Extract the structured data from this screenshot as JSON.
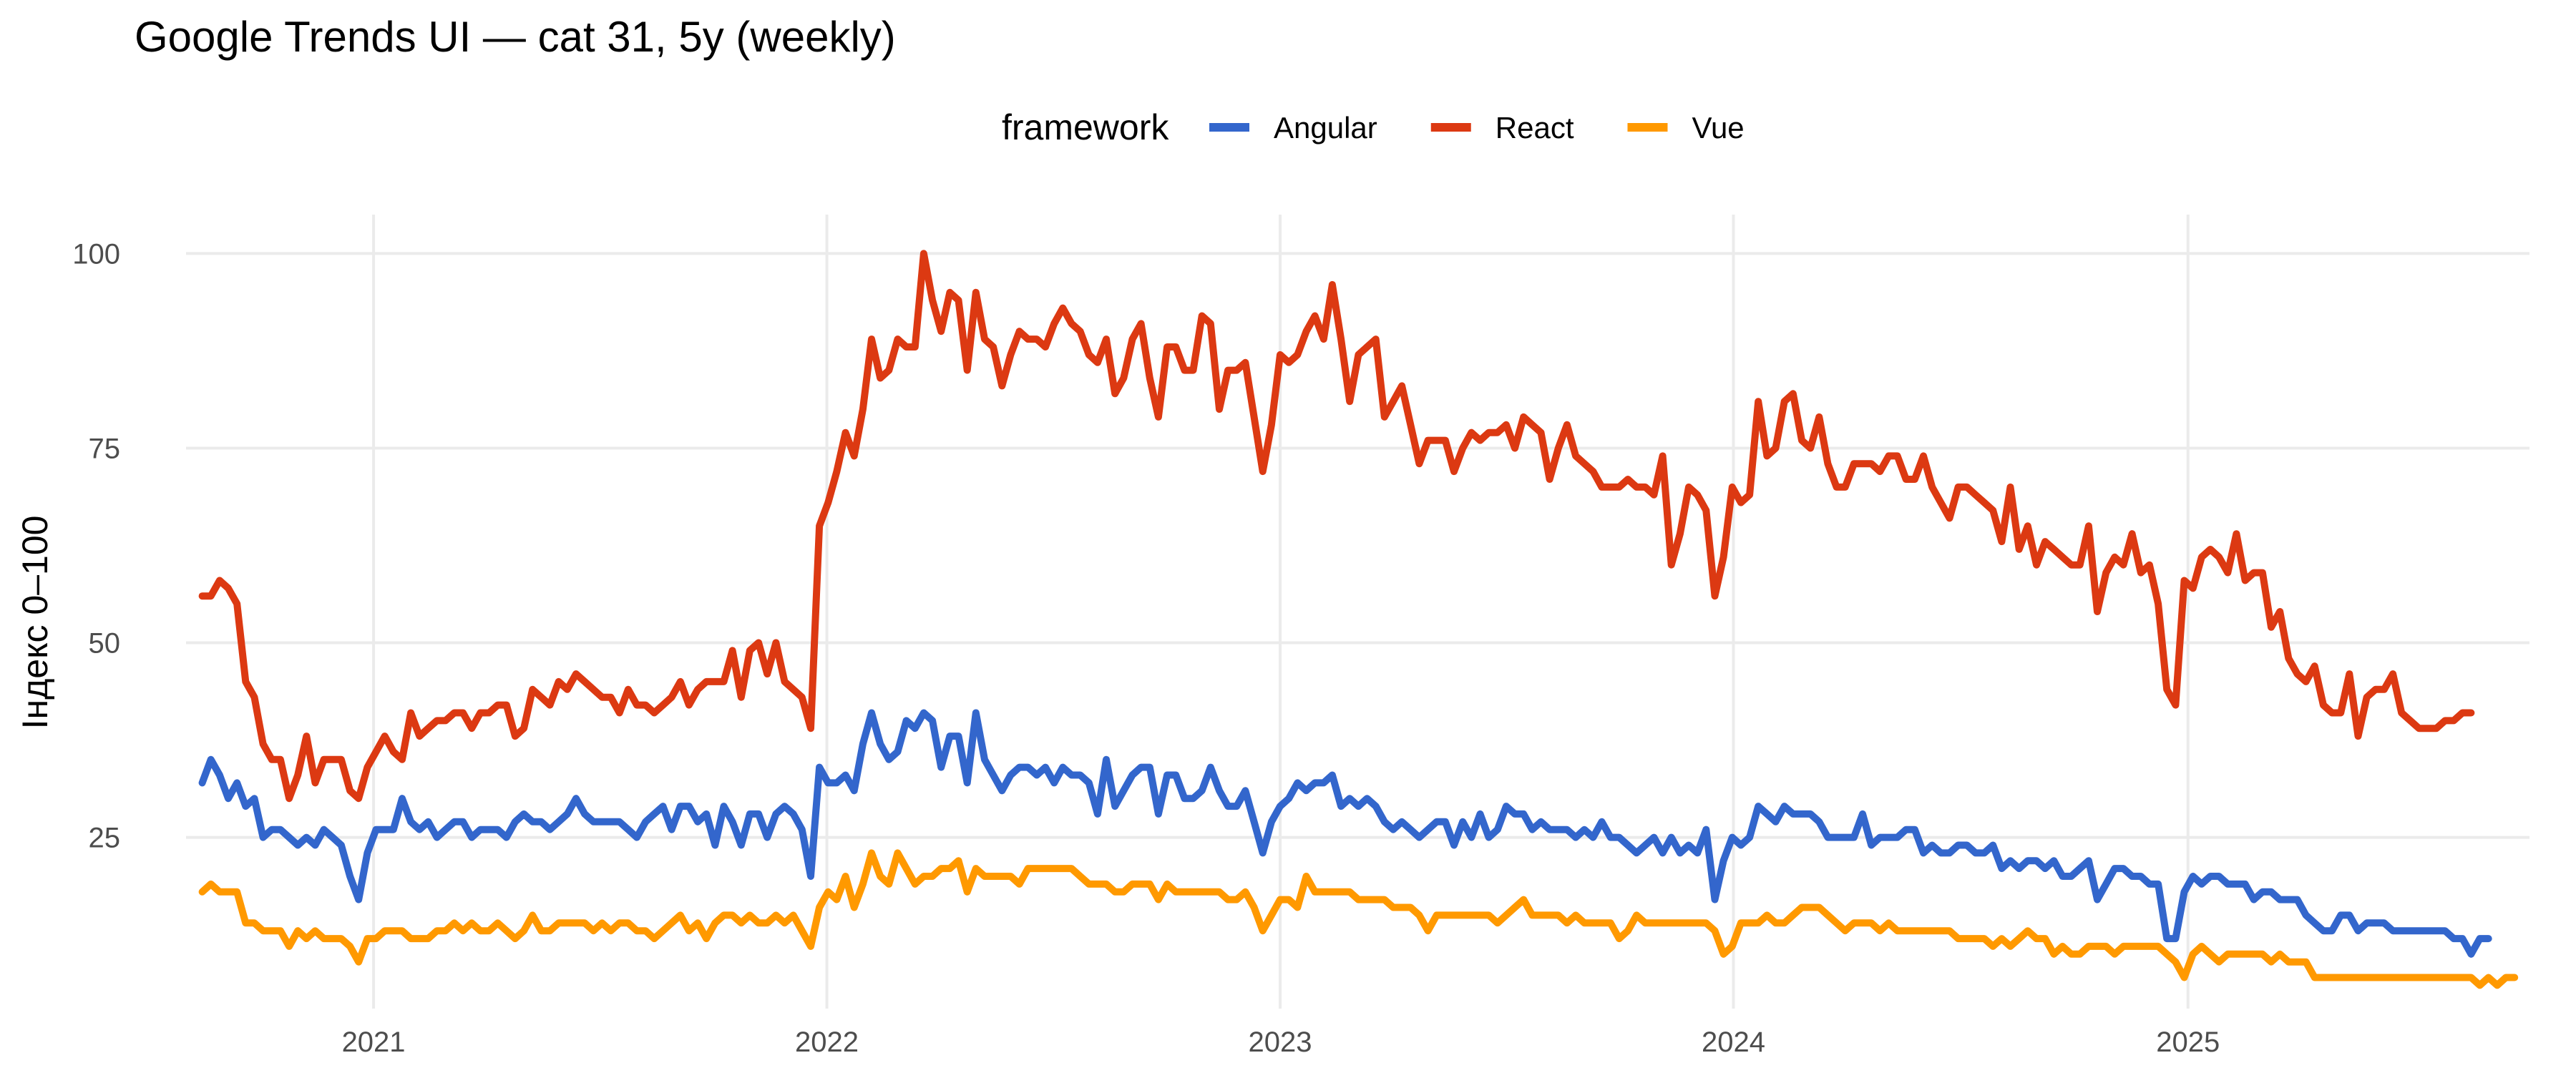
{
  "chart_data": {
    "type": "line",
    "title": "Google Trends UI — cat 31, 5y (weekly)",
    "subtitle": "",
    "xlabel": "",
    "ylabel": "Індекс 0–100",
    "legend": {
      "title": "framework",
      "position": "top"
    },
    "grid": true,
    "xlim": [
      "2020-08-03",
      "2025-10-03"
    ],
    "ylim": [
      3,
      105
    ],
    "x_ticks": [
      {
        "value": "2021-01-01",
        "label": "2021"
      },
      {
        "value": "2022-01-01",
        "label": "2022"
      },
      {
        "value": "2023-01-01",
        "label": "2023"
      },
      {
        "value": "2024-01-01",
        "label": "2024"
      },
      {
        "value": "2025-01-01",
        "label": "2025"
      }
    ],
    "y_ticks": [
      {
        "value": 25,
        "label": "25"
      },
      {
        "value": 50,
        "label": "50"
      },
      {
        "value": 75,
        "label": "75"
      },
      {
        "value": 100,
        "label": "100"
      }
    ],
    "x_start": "2020-08-16",
    "x_interval_days": 7,
    "series": [
      {
        "name": "Angular",
        "color": "#3366CC",
        "values": [
          32,
          35,
          33,
          30,
          32,
          29,
          30,
          25,
          26,
          26,
          25,
          24,
          25,
          24,
          26,
          25,
          24,
          20,
          17,
          23,
          26,
          26,
          26,
          30,
          27,
          26,
          27,
          25,
          26,
          27,
          27,
          25,
          26,
          26,
          26,
          25,
          27,
          28,
          27,
          27,
          26,
          27,
          28,
          30,
          28,
          27,
          27,
          27,
          27,
          26,
          25,
          27,
          28,
          29,
          26,
          29,
          29,
          27,
          28,
          24,
          29,
          27,
          24,
          28,
          28,
          25,
          28,
          29,
          28,
          26,
          20,
          34,
          32,
          32,
          33,
          31,
          37,
          41,
          37,
          35,
          36,
          40,
          39,
          41,
          40,
          34,
          38,
          38,
          32,
          41,
          35,
          33,
          31,
          33,
          34,
          34,
          33,
          34,
          32,
          34,
          33,
          33,
          32,
          28,
          35,
          29,
          31,
          33,
          34,
          34,
          28,
          33,
          33,
          30,
          30,
          31,
          34,
          31,
          29,
          29,
          31,
          27,
          23,
          27,
          29,
          30,
          32,
          31,
          32,
          32,
          33,
          29,
          30,
          29,
          30,
          29,
          27,
          26,
          27,
          26,
          25,
          26,
          27,
          27,
          24,
          27,
          25,
          28,
          25,
          26,
          29,
          28,
          28,
          26,
          27,
          26,
          26,
          26,
          25,
          26,
          25,
          27,
          25,
          25,
          24,
          23,
          24,
          25,
          23,
          25,
          23,
          24,
          23,
          26,
          17,
          22,
          25,
          24,
          25,
          29,
          28,
          27,
          29,
          28,
          28,
          28,
          27,
          25,
          25,
          25,
          25,
          28,
          24,
          25,
          25,
          25,
          26,
          26,
          23,
          24,
          23,
          23,
          24,
          24,
          23,
          23,
          24,
          21,
          22,
          21,
          22,
          22,
          21,
          22,
          20,
          20,
          21,
          22,
          17,
          19,
          21,
          21,
          20,
          20,
          19,
          19,
          12,
          12,
          18,
          20,
          19,
          20,
          20,
          19,
          19,
          19,
          17,
          18,
          18,
          17,
          17,
          17,
          15,
          14,
          13,
          13,
          15,
          15,
          13,
          14,
          14,
          14,
          13,
          13,
          13,
          13,
          13,
          13,
          13,
          12,
          12,
          10,
          12,
          12
        ]
      },
      {
        "name": "React",
        "color": "#DC3912",
        "values": [
          56,
          56,
          58,
          57,
          55,
          45,
          43,
          37,
          35,
          35,
          30,
          33,
          38,
          32,
          35,
          35,
          35,
          31,
          30,
          34,
          36,
          38,
          36,
          35,
          41,
          38,
          39,
          40,
          40,
          41,
          41,
          39,
          41,
          41,
          42,
          42,
          38,
          39,
          44,
          43,
          42,
          45,
          44,
          46,
          45,
          44,
          43,
          43,
          41,
          44,
          42,
          42,
          41,
          42,
          43,
          45,
          42,
          44,
          45,
          45,
          45,
          49,
          43,
          49,
          50,
          46,
          50,
          45,
          44,
          43,
          39,
          65,
          68,
          72,
          77,
          74,
          80,
          89,
          84,
          85,
          89,
          88,
          88,
          100,
          94,
          90,
          95,
          94,
          85,
          95,
          89,
          88,
          83,
          87,
          90,
          89,
          89,
          88,
          91,
          93,
          91,
          90,
          87,
          86,
          89,
          82,
          84,
          89,
          91,
          84,
          79,
          88,
          88,
          85,
          85,
          92,
          91,
          80,
          85,
          85,
          86,
          79,
          72,
          78,
          87,
          86,
          87,
          90,
          92,
          89,
          96,
          89,
          81,
          87,
          88,
          89,
          79,
          81,
          83,
          78,
          73,
          76,
          76,
          76,
          72,
          75,
          77,
          76,
          77,
          77,
          78,
          75,
          79,
          78,
          77,
          71,
          75,
          78,
          74,
          73,
          72,
          70,
          70,
          70,
          71,
          70,
          70,
          69,
          74,
          60,
          64,
          70,
          69,
          67,
          56,
          61,
          70,
          68,
          69,
          81,
          74,
          75,
          81,
          82,
          76,
          75,
          79,
          73,
          70,
          70,
          73,
          73,
          73,
          72,
          74,
          74,
          71,
          71,
          74,
          70,
          68,
          66,
          70,
          70,
          69,
          68,
          67,
          63,
          70,
          62,
          65,
          60,
          63,
          62,
          61,
          60,
          60,
          65,
          54,
          59,
          61,
          60,
          64,
          59,
          60,
          55,
          44,
          42,
          58,
          57,
          61,
          62,
          61,
          59,
          64,
          58,
          59,
          59,
          52,
          54,
          48,
          46,
          45,
          47,
          42,
          41,
          41,
          46,
          38,
          43,
          44,
          44,
          46,
          41,
          40,
          39,
          39,
          39,
          40,
          40,
          41,
          41
        ]
      },
      {
        "name": "Vue",
        "color": "#FF9900",
        "values": [
          18,
          19,
          18,
          18,
          18,
          14,
          14,
          13,
          13,
          13,
          11,
          13,
          12,
          13,
          12,
          12,
          12,
          11,
          9,
          12,
          12,
          13,
          13,
          13,
          12,
          12,
          12,
          13,
          13,
          14,
          13,
          14,
          13,
          13,
          14,
          13,
          12,
          13,
          15,
          13,
          13,
          14,
          14,
          14,
          14,
          13,
          14,
          13,
          14,
          14,
          13,
          13,
          12,
          13,
          14,
          15,
          13,
          14,
          12,
          14,
          15,
          15,
          14,
          15,
          14,
          14,
          15,
          14,
          15,
          13,
          11,
          16,
          18,
          17,
          20,
          16,
          19,
          23,
          20,
          19,
          23,
          21,
          19,
          20,
          20,
          21,
          21,
          22,
          18,
          21,
          20,
          20,
          20,
          20,
          19,
          21,
          21,
          21,
          21,
          21,
          21,
          20,
          19,
          19,
          19,
          18,
          18,
          19,
          19,
          19,
          17,
          19,
          18,
          18,
          18,
          18,
          18,
          18,
          17,
          17,
          18,
          16,
          13,
          15,
          17,
          17,
          16,
          20,
          18,
          18,
          18,
          18,
          18,
          17,
          17,
          17,
          17,
          16,
          16,
          16,
          15,
          13,
          15,
          15,
          15,
          15,
          15,
          15,
          15,
          14,
          15,
          16,
          17,
          15,
          15,
          15,
          15,
          14,
          15,
          14,
          14,
          14,
          14,
          12,
          13,
          15,
          14,
          14,
          14,
          14,
          14,
          14,
          14,
          14,
          13,
          10,
          11,
          14,
          14,
          14,
          15,
          14,
          14,
          15,
          16,
          16,
          16,
          15,
          14,
          13,
          14,
          14,
          14,
          13,
          14,
          13,
          13,
          13,
          13,
          13,
          13,
          13,
          12,
          12,
          12,
          12,
          11,
          12,
          11,
          12,
          13,
          12,
          12,
          10,
          11,
          10,
          10,
          11,
          11,
          11,
          10,
          11,
          11,
          11,
          11,
          11,
          10,
          9,
          7,
          10,
          11,
          10,
          9,
          10,
          10,
          10,
          10,
          10,
          9,
          10,
          9,
          9,
          9,
          7,
          7,
          7,
          7,
          7,
          7,
          7,
          7,
          7,
          7,
          7,
          7,
          7,
          7,
          7,
          7,
          7,
          7,
          7,
          6,
          7,
          6,
          7,
          7
        ]
      }
    ]
  }
}
